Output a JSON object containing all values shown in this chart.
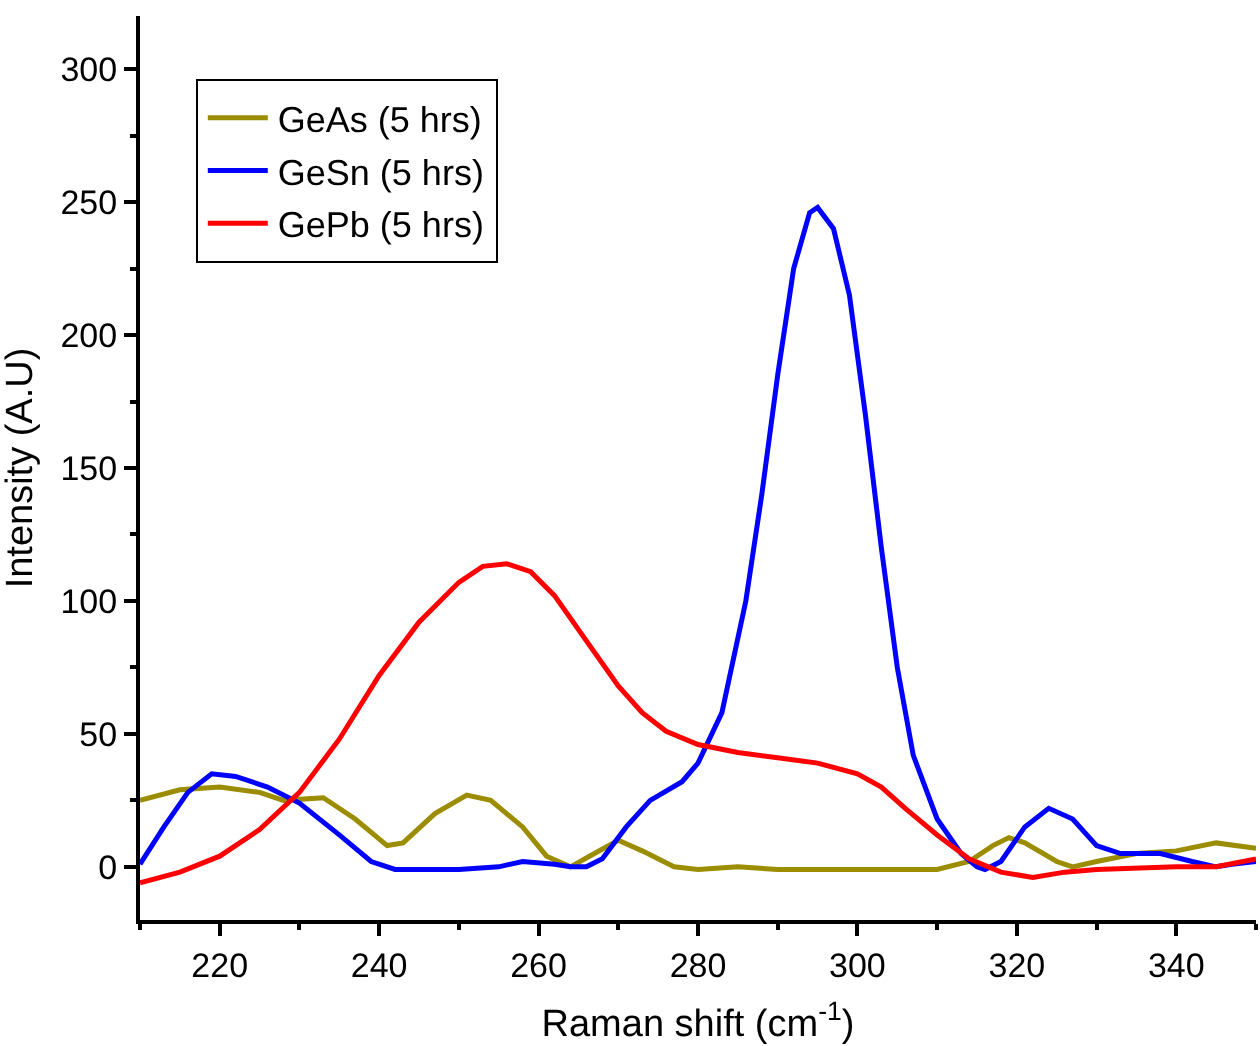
{
  "chart_data": {
    "type": "line",
    "xlabel": "Raman shift (cm$^{-1}$)",
    "ylabel": "Intensity (A.U)",
    "xlim": [
      210,
      350
    ],
    "ylim": [
      -20,
      320
    ],
    "xticks": [
      220,
      240,
      260,
      280,
      300,
      320,
      340
    ],
    "yticks": [
      0,
      50,
      100,
      150,
      200,
      250,
      300
    ],
    "legend": "top left",
    "marker": "none",
    "line_style": "solid",
    "series": [
      {
        "name": "GeAs (5 hrs)",
        "color": "#9b8c00",
        "x": [
          210,
          215,
          220,
          225,
          228,
          233,
          237,
          241,
          243,
          247,
          251,
          254,
          258,
          261,
          264,
          267,
          270,
          273,
          277,
          280,
          285,
          290,
          300,
          310,
          314,
          317,
          319,
          321,
          325,
          327,
          330,
          335,
          340,
          345,
          350
        ],
        "values": [
          25,
          29,
          30,
          28,
          25,
          26,
          18,
          8,
          9,
          20,
          27,
          25,
          15,
          4,
          0,
          5,
          10,
          6,
          0,
          -1,
          0,
          -1,
          -1,
          -1,
          2,
          8,
          11,
          9,
          2,
          0,
          2,
          5,
          6,
          9,
          7
        ]
      },
      {
        "name": "GeSn (5 hrs)",
        "color": "#0000ff",
        "x": [
          210,
          213,
          216,
          219,
          222,
          226,
          230,
          235,
          239,
          242,
          245,
          250,
          255,
          258,
          262,
          264,
          266,
          268,
          271,
          274,
          278,
          280,
          283,
          286,
          288,
          290,
          292,
          294,
          295,
          297,
          299,
          301,
          303,
          305,
          307,
          310,
          313,
          315,
          316,
          318,
          321,
          324,
          327,
          330,
          333,
          338,
          342,
          345,
          347,
          350
        ],
        "values": [
          1,
          15,
          28,
          35,
          34,
          30,
          24,
          12,
          2,
          -1,
          -1,
          -1,
          0,
          2,
          1,
          0,
          0,
          3,
          15,
          25,
          32,
          39,
          58,
          100,
          140,
          185,
          225,
          246,
          248,
          240,
          215,
          170,
          120,
          75,
          42,
          18,
          5,
          0,
          -1,
          2,
          15,
          22,
          18,
          8,
          5,
          5,
          2,
          0,
          1,
          2
        ]
      },
      {
        "name": "GePb (5 hrs)",
        "color": "#ff0000",
        "x": [
          210,
          215,
          220,
          225,
          230,
          235,
          240,
          245,
          250,
          253,
          256,
          259,
          262,
          266,
          270,
          273,
          276,
          280,
          285,
          290,
          295,
          300,
          303,
          306,
          310,
          314,
          318,
          322,
          326,
          330,
          340,
          345,
          350
        ],
        "values": [
          -6,
          -2,
          4,
          14,
          28,
          48,
          72,
          92,
          107,
          113,
          114,
          111,
          102,
          85,
          68,
          58,
          51,
          46,
          43,
          41,
          39,
          35,
          30,
          22,
          12,
          3,
          -2,
          -4,
          -2,
          -1,
          0,
          0,
          3
        ]
      }
    ]
  }
}
